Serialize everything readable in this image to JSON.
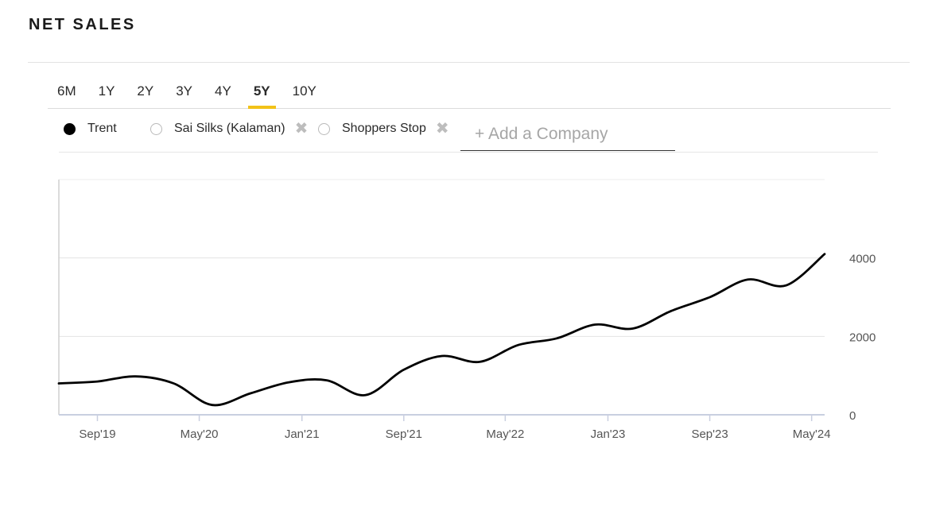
{
  "header": {
    "title": "NET SALES"
  },
  "ranges": [
    {
      "label": "6M",
      "active": false
    },
    {
      "label": "1Y",
      "active": false
    },
    {
      "label": "2Y",
      "active": false
    },
    {
      "label": "3Y",
      "active": false
    },
    {
      "label": "4Y",
      "active": false
    },
    {
      "label": "5Y",
      "active": true
    },
    {
      "label": "10Y",
      "active": false
    }
  ],
  "companies": [
    {
      "name": "Trent",
      "selected": true,
      "removable": false
    },
    {
      "name": "Sai Silks (Kalaman)",
      "selected": false,
      "removable": true
    },
    {
      "name": "Shoppers Stop",
      "selected": false,
      "removable": true
    }
  ],
  "add_company": {
    "placeholder": "+ Add a Company"
  },
  "colors": {
    "accent": "#f2c218",
    "line": "#000000",
    "grid": "#e3e3e3"
  },
  "chart_data": {
    "type": "line",
    "title": "NET SALES",
    "ylim": [
      0,
      6000
    ],
    "yticks": [
      0,
      2000,
      4000
    ],
    "ytick_labels": [
      "0",
      "2000",
      "4000"
    ],
    "y_axis_position": "right",
    "grid": true,
    "xlim": [
      "2019-06-01",
      "2024-06-01"
    ],
    "xticks": [
      "2019-09",
      "2020-05",
      "2021-01",
      "2021-09",
      "2022-05",
      "2023-01",
      "2023-09",
      "2024-05"
    ],
    "xtick_labels": [
      "Sep'19",
      "May'20",
      "Jan'21",
      "Sep'21",
      "May'22",
      "Jan'23",
      "Sep'23",
      "May'24"
    ],
    "series": [
      {
        "name": "Trent",
        "color": "#000000",
        "x": [
          "2019-06",
          "2019-09",
          "2019-12",
          "2020-03",
          "2020-06",
          "2020-09",
          "2020-12",
          "2021-03",
          "2021-06",
          "2021-09",
          "2021-12",
          "2022-03",
          "2022-06",
          "2022-09",
          "2022-12",
          "2023-03",
          "2023-06",
          "2023-09",
          "2023-12",
          "2024-03",
          "2024-06"
        ],
        "y": [
          800,
          850,
          980,
          800,
          250,
          550,
          830,
          880,
          500,
          1150,
          1500,
          1350,
          1780,
          1950,
          2300,
          2200,
          2650,
          3000,
          3450,
          3300,
          4100
        ]
      }
    ]
  }
}
